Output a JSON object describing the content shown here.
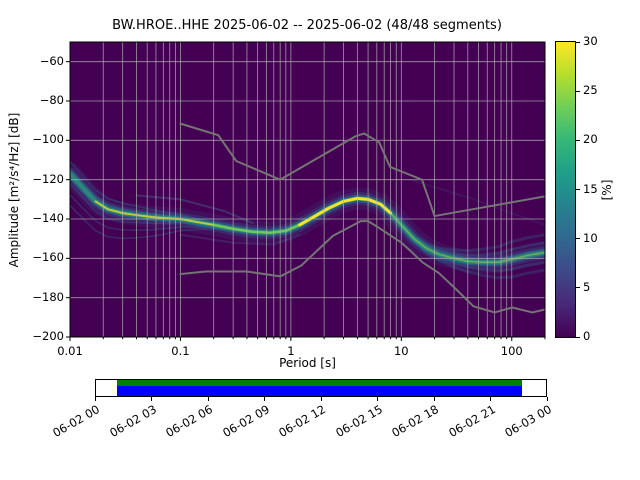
{
  "title": "BW.HROE..HHE 2025-06-02 -- 2025-06-02 (48/48 segments)",
  "axes": {
    "xlabel": "Period [s]",
    "ylabel": "Amplitude [m²/s⁴/Hz] [dB]",
    "x_scale": "log",
    "x_tick_values": [
      0.01,
      0.1,
      1,
      10,
      100
    ],
    "x_tick_labels": [
      "0.01",
      "0.1",
      "1",
      "10",
      "100"
    ],
    "y_tick_values": [
      -60,
      -80,
      -100,
      -120,
      -140,
      -160,
      -180,
      -200
    ],
    "y_tick_labels": [
      "−60",
      "−80",
      "−100",
      "−120",
      "−140",
      "−160",
      "−180",
      "−200"
    ],
    "grid": true,
    "grid_color": "#b0b0b0"
  },
  "colorbar": {
    "label": "[%]",
    "ticks": [
      0,
      5,
      10,
      15,
      20,
      25,
      30
    ],
    "range": [
      0,
      30
    ],
    "colormap": "viridis",
    "colors": [
      "#440154",
      "#482878",
      "#3e4989",
      "#31688e",
      "#26828e",
      "#1f9e89",
      "#35b779",
      "#6ece58",
      "#b5de2b",
      "#fde725"
    ]
  },
  "chart_data": {
    "type": "heatmap",
    "title": "BW.HROE..HHE 2025-06-02 -- 2025-06-02 (48/48 segments)",
    "xlabel": "Period [s]",
    "ylabel": "Amplitude [m²/s⁴/Hz] [dB]",
    "x_scale": "log",
    "xlim": [
      0.01,
      200
    ],
    "ylim": [
      -200,
      -50
    ],
    "colorbar_label": "[%]",
    "colorbar_range": [
      0,
      30
    ],
    "background_color": "#440154",
    "noise_model_color": "#757575",
    "ppsd_mode": {
      "periods": [
        0.01,
        0.013,
        0.017,
        0.022,
        0.03,
        0.04,
        0.055,
        0.07,
        0.1,
        0.14,
        0.2,
        0.3,
        0.45,
        0.65,
        0.9,
        1.2,
        1.6,
        2.2,
        3,
        4,
        5,
        6.5,
        8,
        10,
        13,
        17,
        22,
        30,
        40,
        55,
        75,
        100,
        140,
        200
      ],
      "db": [
        -117,
        -124,
        -131,
        -135,
        -137,
        -138,
        -139,
        -139.5,
        -140,
        -141.5,
        -143,
        -145,
        -146.5,
        -147,
        -146,
        -143,
        -139,
        -134.5,
        -131,
        -129.5,
        -130,
        -132.5,
        -137,
        -143,
        -150,
        -155,
        -158,
        -160,
        -161.5,
        -162,
        -162,
        -160.5,
        -158.5,
        -157
      ]
    },
    "histogram_spread": {
      "left_fan": {
        "offsets_db": [
          3,
          7,
          -6,
          -12,
          -18
        ],
        "decay_period": 0.09,
        "max_period": 0.7
      },
      "right_fan": {
        "offsets_db": [
          5,
          9,
          -5,
          -9
        ],
        "min_period": 8
      },
      "streaks": [
        {
          "periods": [
            0.04,
            0.1,
            0.25,
            0.45
          ],
          "db": [
            -128,
            -130,
            -136,
            -142
          ],
          "alpha": 0.3
        },
        {
          "periods": [
            0.1,
            0.3,
            0.7,
            1.2
          ],
          "db": [
            -148,
            -152,
            -153,
            -148
          ],
          "alpha": 0.2
        },
        {
          "periods": [
            12,
            40,
            200
          ],
          "db": [
            -120,
            -129,
            -143
          ],
          "alpha": 0.12
        }
      ]
    },
    "noise_models": {
      "nhnm": {
        "periods": [
          0.1,
          0.22,
          0.32,
          0.8,
          3.8,
          4.6,
          6.3,
          7.9,
          15.4,
          20,
          200
        ],
        "db": [
          -91.5,
          -97.4,
          -110.5,
          -120,
          -98.1,
          -96.5,
          -101,
          -113.5,
          -120,
          -138.5,
          -128.5
        ]
      },
      "nlnm": {
        "periods": [
          0.1,
          0.17,
          0.4,
          0.8,
          1.24,
          2.4,
          4.3,
          5,
          6,
          10,
          12,
          15.6,
          21.9,
          31.6,
          45,
          70,
          101,
          154,
          200
        ],
        "db": [
          -168,
          -166.7,
          -166.7,
          -169.2,
          -163.7,
          -148.6,
          -141.1,
          -141.1,
          -143.8,
          -152,
          -156,
          -162.1,
          -167.5,
          -175.9,
          -184.4,
          -187.5,
          -185,
          -187.5,
          -186
        ]
      }
    }
  },
  "timeline": {
    "tick_labels": [
      "06-02 00",
      "06-02 03",
      "06-02 06",
      "06-02 09",
      "06-02 12",
      "06-02 15",
      "06-02 18",
      "06-02 21",
      "06-03 00"
    ],
    "span_color": "#008000",
    "coverage_color": "#0000ff",
    "coverage_start_frac": 0.047,
    "coverage_end_frac": 0.947
  }
}
